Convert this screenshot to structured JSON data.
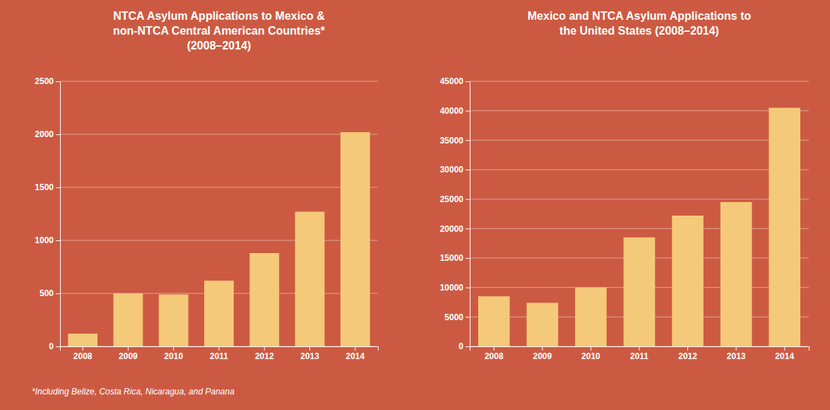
{
  "chart_data": [
    {
      "type": "bar",
      "title": "NTCA Asylum Applications to Mexico &\nnon-NTCA Central American Countries*\n(2008–2014)",
      "categories": [
        "2008",
        "2009",
        "2010",
        "2011",
        "2012",
        "2013",
        "2014"
      ],
      "values": [
        120,
        500,
        490,
        620,
        880,
        1270,
        2020
      ],
      "color": "#F5C97A",
      "ylim": [
        0,
        2500
      ],
      "yticks": [
        0,
        500,
        1000,
        1500,
        2000,
        2500
      ],
      "grid": true,
      "footnote": "*Including Belize, Costa Rica, Nicaragua, and Panana"
    },
    {
      "type": "bar",
      "title": "Mexico and NTCA Asylum Applications to\nthe United States (2008–2014)",
      "categories": [
        "2008",
        "2009",
        "2010",
        "2011",
        "2012",
        "2013",
        "2014"
      ],
      "values": [
        8500,
        7400,
        10000,
        18500,
        22200,
        24500,
        40500
      ],
      "color": "#F5C97A",
      "ylim": [
        0,
        45000
      ],
      "yticks": [
        0,
        5000,
        10000,
        15000,
        20000,
        25000,
        30000,
        35000,
        40000,
        45000
      ],
      "grid": true
    }
  ]
}
